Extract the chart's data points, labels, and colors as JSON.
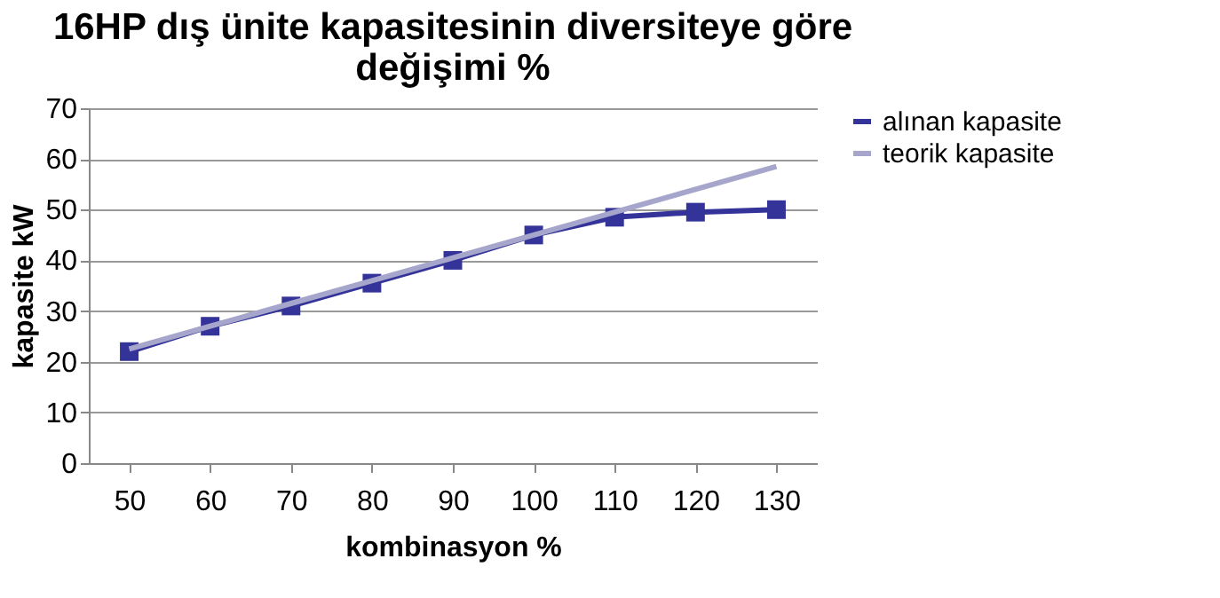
{
  "chart_data": {
    "type": "line",
    "title": "16HP dış ünite kapasitesinin diversiteye göre değişimi %",
    "xlabel": "kombinasyon %",
    "ylabel": "kapasite kW",
    "categories": [
      "50",
      "60",
      "70",
      "80",
      "90",
      "100",
      "110",
      "120",
      "130"
    ],
    "series": [
      {
        "name": "alınan kapasite",
        "color": "#333399",
        "marker": "square",
        "values": [
          22,
          27,
          31,
          35.5,
          40,
          45,
          48.5,
          49.5,
          50
        ]
      },
      {
        "name": "teorik kapasite",
        "color": "#a6a6cc",
        "marker": "none",
        "values": [
          22.5,
          27,
          31.5,
          36,
          40.5,
          45,
          49.5,
          54,
          58.5
        ]
      }
    ],
    "ylim": [
      0,
      70
    ],
    "yticks": [
      0,
      10,
      20,
      30,
      40,
      50,
      60,
      70
    ],
    "grid": "y",
    "legend": "right"
  }
}
